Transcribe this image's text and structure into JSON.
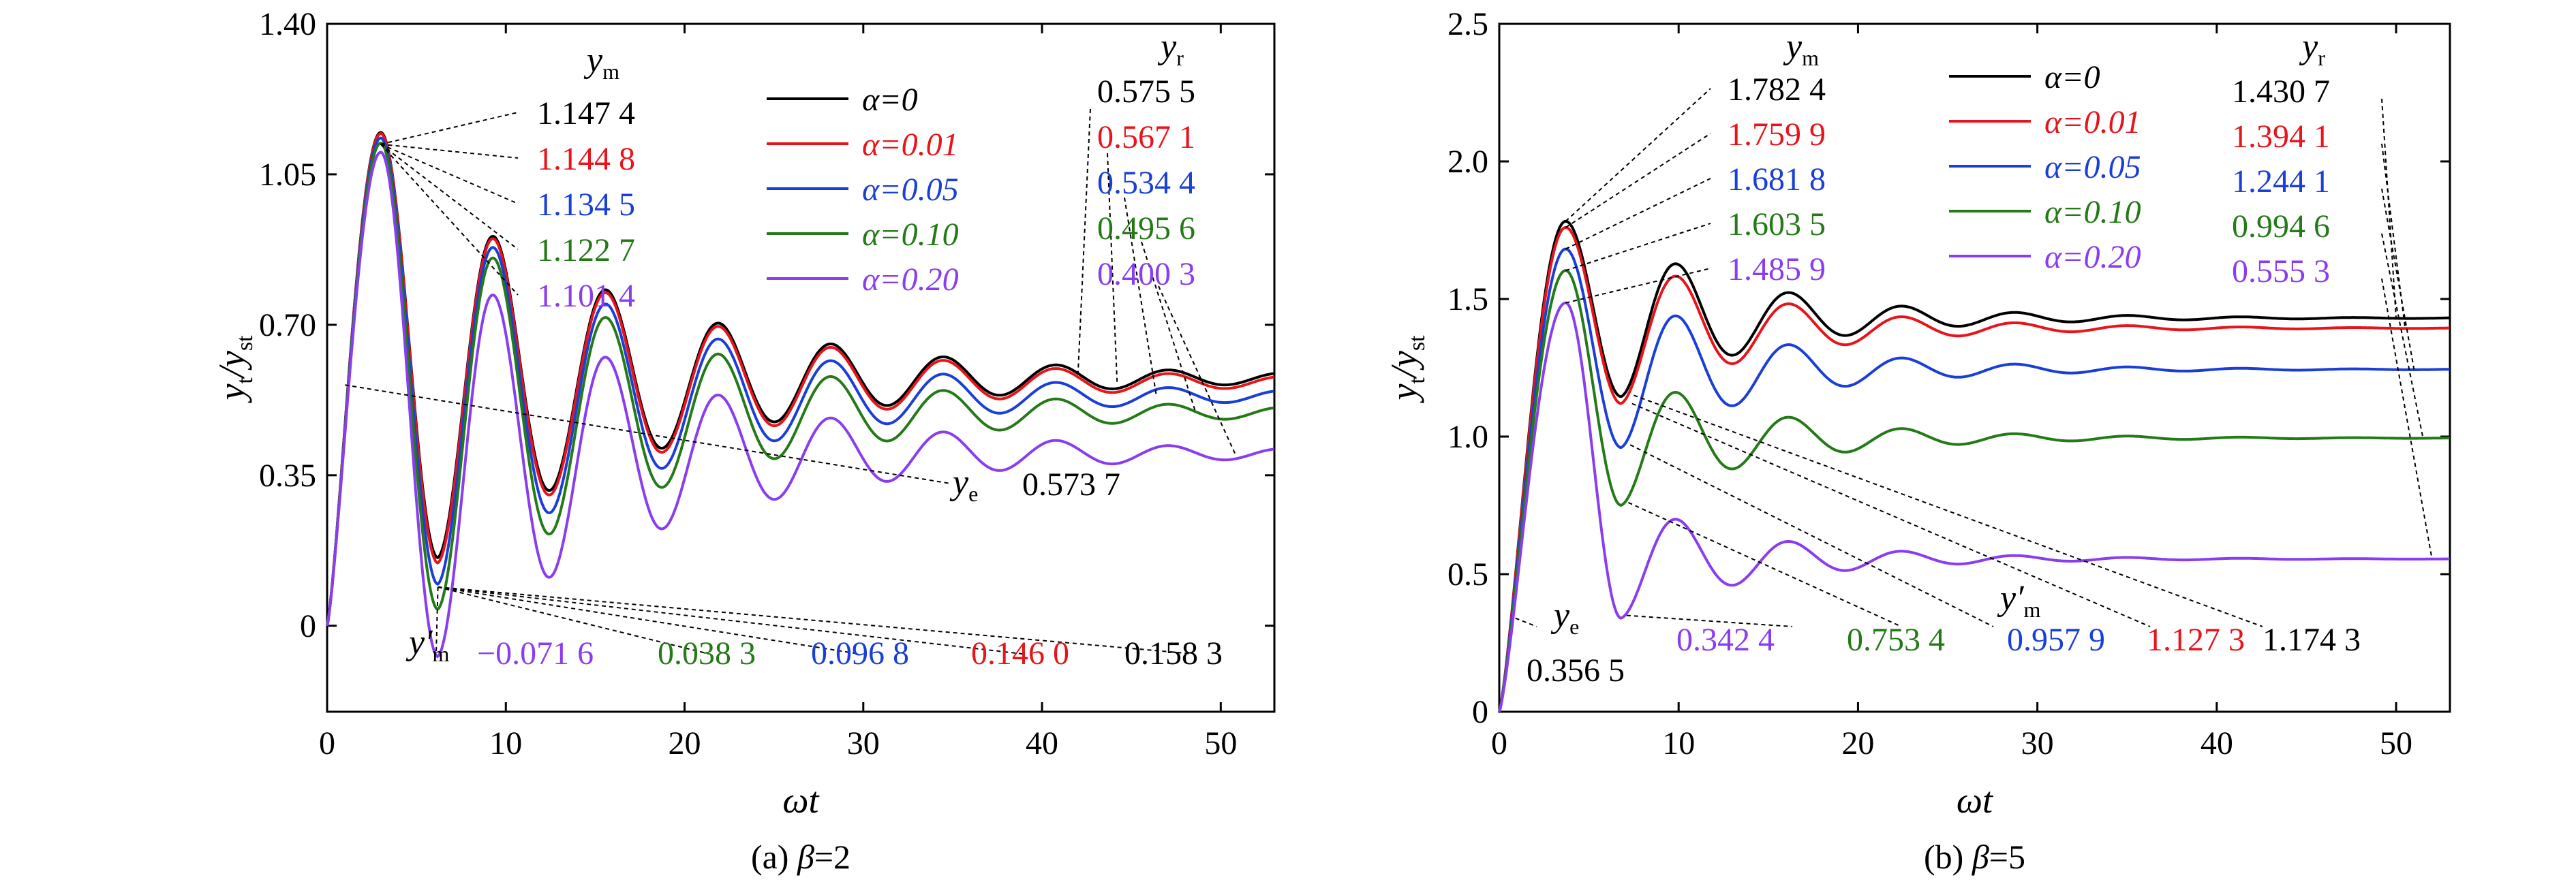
{
  "chart_data": [
    {
      "panel": "a",
      "type": "line",
      "caption_prefix": "(a) ",
      "caption_var": "β",
      "caption_value": "=2",
      "beta": 2,
      "xlabel": "ωt",
      "ylabel_main": "y",
      "ylabel_sub1": "t",
      "ylabel_slash": "/y",
      "ylabel_sub2": "st",
      "xlim": [
        0,
        53
      ],
      "ylim": [
        -0.2,
        1.4
      ],
      "x_ticks": [
        0,
        10,
        20,
        30,
        40,
        50
      ],
      "y_ticks": [
        0,
        0.35,
        0.7,
        1.05,
        1.4
      ],
      "y_tick_labels": [
        "0",
        "0.35",
        "0.70",
        "1.05",
        "1.40"
      ],
      "legend": {
        "position": "top-center"
      },
      "series": [
        {
          "name": "α=0",
          "alpha": 0,
          "color": "#000000",
          "ym": "1.147 4",
          "yr": "0.575 5",
          "ymp": "0.158 3"
        },
        {
          "name": "α=0.01",
          "alpha": 0.01,
          "color": "#e8141b",
          "ym": "1.144 8",
          "yr": "0.567 1",
          "ymp": "0.146 0"
        },
        {
          "name": "α=0.05",
          "alpha": 0.05,
          "color": "#1a3fd8",
          "ym": "1.134 5",
          "yr": "0.534 4",
          "ymp": "0.096 8"
        },
        {
          "name": "α=0.10",
          "alpha": 0.1,
          "color": "#237a17",
          "ym": "1.122 7",
          "yr": "0.495 6",
          "ymp": "0.038 3"
        },
        {
          "name": "α=0.20",
          "alpha": 0.2,
          "color": "#8a3df0",
          "ym": "1.101 4",
          "yr": "0.400 3",
          "ymp": "−0.071 6"
        }
      ],
      "ym_label": "y",
      "ym_sub": "m",
      "yr_label": "y",
      "yr_sub": "r",
      "ymp_label": "y′",
      "ymp_sub": "m",
      "ye_label": "y",
      "ye_sub": "e",
      "ye_value": "0.573 7",
      "peak_x": 3.0,
      "trough_x": 6.2,
      "ye_x": 1.0
    },
    {
      "panel": "b",
      "type": "line",
      "caption_prefix": "(b) ",
      "caption_var": "β",
      "caption_value": "=5",
      "beta": 5,
      "xlabel": "ωt",
      "ylabel_main": "y",
      "ylabel_sub1": "t",
      "ylabel_slash": "/y",
      "ylabel_sub2": "st",
      "xlim": [
        0,
        53
      ],
      "ylim": [
        0,
        2.5
      ],
      "x_ticks": [
        0,
        10,
        20,
        30,
        40,
        50
      ],
      "y_ticks": [
        0,
        0.5,
        1.0,
        1.5,
        2.0,
        2.5
      ],
      "y_tick_labels": [
        "0",
        "0.5",
        "1.0",
        "1.5",
        "2.0",
        "2.5"
      ],
      "legend": {
        "position": "top-center"
      },
      "series": [
        {
          "name": "α=0",
          "alpha": 0,
          "color": "#000000",
          "ym": "1.782 4",
          "yr": "1.430 7",
          "ymp": "1.174 3",
          "ym_v": 1.7824,
          "yr_v": 1.4307,
          "ymp_v": 1.1743
        },
        {
          "name": "α=0.01",
          "alpha": 0.01,
          "color": "#e8141b",
          "ym": "1.759 9",
          "yr": "1.394 1",
          "ymp": "1.127 3",
          "ym_v": 1.7599,
          "yr_v": 1.3941,
          "ymp_v": 1.1273
        },
        {
          "name": "α=0.05",
          "alpha": 0.05,
          "color": "#1a3fd8",
          "ym": "1.681 8",
          "yr": "1.244 1",
          "ymp": "0.957 9",
          "ym_v": 1.6818,
          "yr_v": 1.2441,
          "ymp_v": 0.9579
        },
        {
          "name": "α=0.10",
          "alpha": 0.1,
          "color": "#237a17",
          "ym": "1.603 5",
          "yr": "0.994 6",
          "ymp": "0.753 4",
          "ym_v": 1.6035,
          "yr_v": 0.9946,
          "ymp_v": 0.7534
        },
        {
          "name": "α=0.20",
          "alpha": 0.2,
          "color": "#8a3df0",
          "ym": "1.485 9",
          "yr": "0.555 3",
          "ymp": "0.342 4",
          "ym_v": 1.4859,
          "yr_v": 0.5553,
          "ymp_v": 0.3424
        }
      ],
      "ym_label": "y",
      "ym_sub": "m",
      "yr_label": "y",
      "yr_sub": "r",
      "ymp_label": "y′",
      "ymp_sub": "m",
      "ye_label": "y",
      "ye_sub": "e",
      "ye_value": "0.356 5",
      "peak_x": 3.7,
      "trough_x": 6.8,
      "ye_x": 0.9
    }
  ]
}
